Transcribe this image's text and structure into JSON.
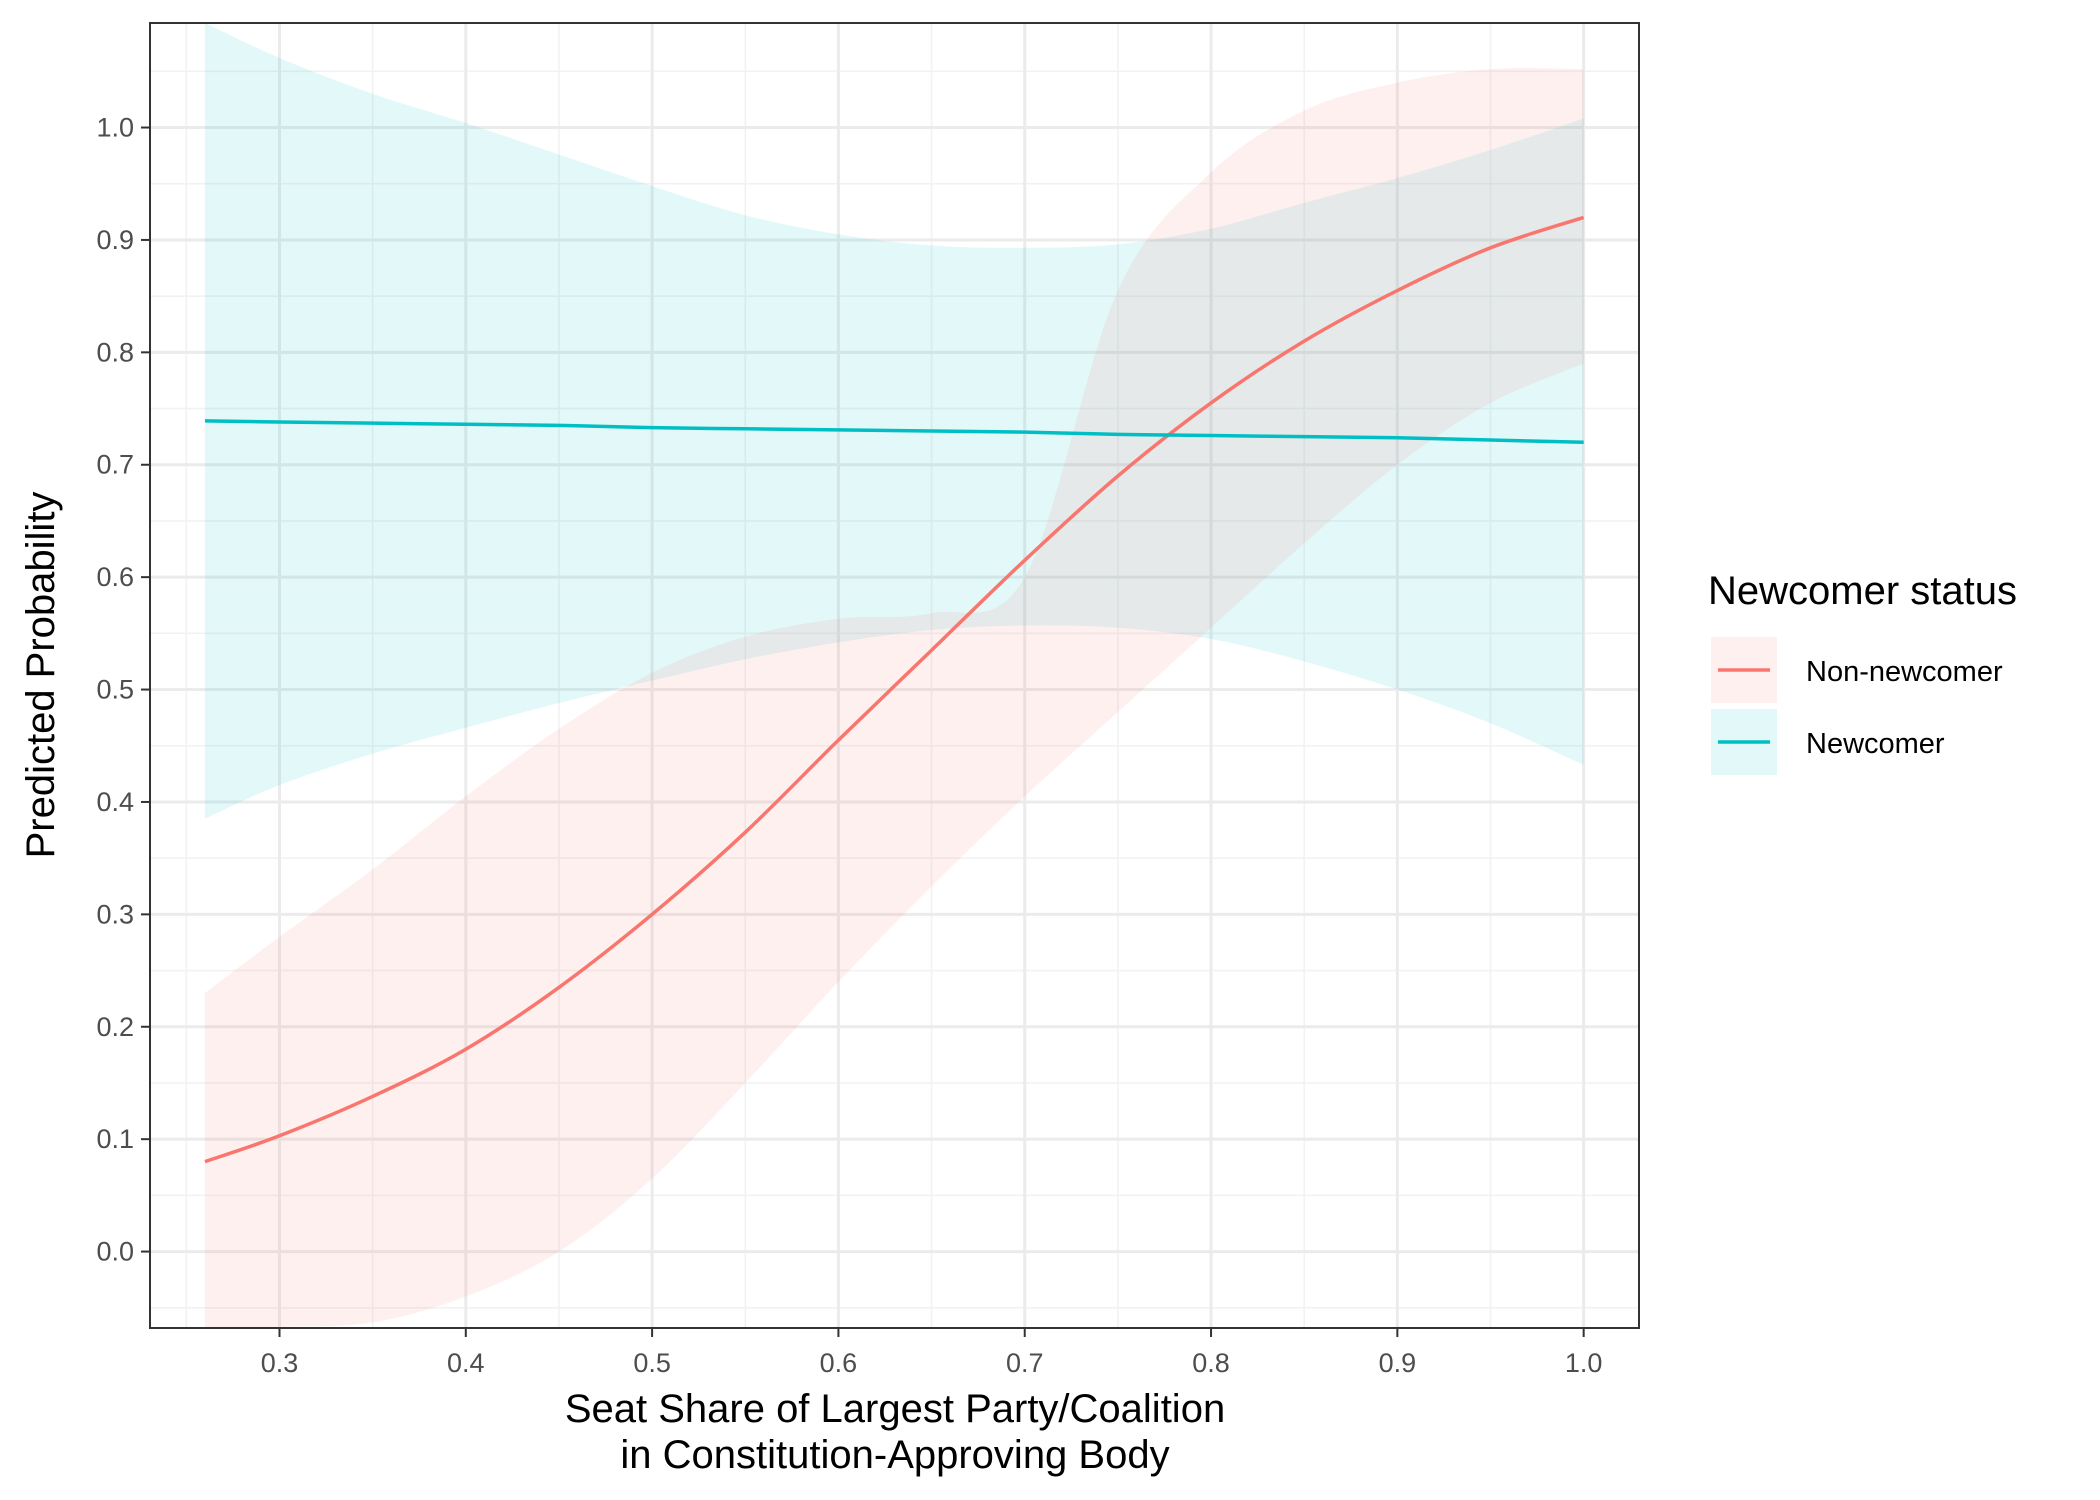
{
  "chart_data": {
    "type": "line",
    "title": "",
    "xlabel_lines": [
      "Seat Share of Largest Party/Coalition",
      "in Constitution-Approving Body"
    ],
    "ylabel": "Predicted Probability",
    "xlim": [
      0.2305,
      1.0297
    ],
    "ylim": [
      -0.068,
      1.093
    ],
    "x_ticks": [
      0.3,
      0.4,
      0.5,
      0.6,
      0.7,
      0.8,
      0.9,
      1.0
    ],
    "x_tick_labels": [
      "0.3",
      "0.4",
      "0.5",
      "0.6",
      "0.7",
      "0.8",
      "0.9",
      "1.0"
    ],
    "y_ticks": [
      0.0,
      0.1,
      0.2,
      0.3,
      0.4,
      0.5,
      0.6,
      0.7,
      0.8,
      0.9,
      1.0
    ],
    "y_tick_labels": [
      "0.0",
      "0.1",
      "0.2",
      "0.3",
      "0.4",
      "0.5",
      "0.6",
      "0.7",
      "0.8",
      "0.9",
      "1.0"
    ],
    "grid": true,
    "legend": {
      "title": "Newcomer status",
      "position": "right",
      "entries": [
        "Non-newcomer",
        "Newcomer"
      ]
    },
    "series": [
      {
        "name": "Non-newcomer",
        "color": "#F8766D",
        "fill": "#F8766D",
        "x": [
          0.26,
          0.3,
          0.35,
          0.4,
          0.45,
          0.5,
          0.55,
          0.6,
          0.65,
          0.7,
          0.75,
          0.8,
          0.85,
          0.9,
          0.95,
          1.0
        ],
        "y": [
          0.08,
          0.103,
          0.138,
          0.18,
          0.235,
          0.3,
          0.373,
          0.455,
          0.535,
          0.615,
          0.69,
          0.755,
          0.81,
          0.855,
          0.893,
          0.92
        ],
        "lower": [
          -0.068,
          -0.067,
          -0.063,
          -0.04,
          0.0,
          0.065,
          0.15,
          0.24,
          0.325,
          0.405,
          0.48,
          0.555,
          0.63,
          0.7,
          0.755,
          0.79
        ],
        "upper": [
          0.23,
          0.28,
          0.34,
          0.405,
          0.465,
          0.515,
          0.547,
          0.563,
          0.568,
          0.6,
          0.855,
          0.96,
          1.015,
          1.04,
          1.052,
          1.052
        ]
      },
      {
        "name": "Newcomer",
        "color": "#00BFC4",
        "fill": "#00BFC4",
        "x": [
          0.26,
          0.3,
          0.35,
          0.4,
          0.45,
          0.5,
          0.55,
          0.6,
          0.65,
          0.7,
          0.75,
          0.8,
          0.85,
          0.9,
          0.95,
          1.0
        ],
        "y": [
          0.739,
          0.738,
          0.737,
          0.736,
          0.735,
          0.733,
          0.732,
          0.731,
          0.73,
          0.729,
          0.727,
          0.726,
          0.725,
          0.724,
          0.722,
          0.72
        ],
        "lower": [
          0.385,
          0.415,
          0.443,
          0.466,
          0.488,
          0.508,
          0.527,
          0.542,
          0.553,
          0.557,
          0.555,
          0.545,
          0.525,
          0.5,
          0.47,
          0.433
        ],
        "upper": [
          1.093,
          1.062,
          1.03,
          1.004,
          0.976,
          0.948,
          0.922,
          0.905,
          0.895,
          0.893,
          0.896,
          0.91,
          0.933,
          0.955,
          0.98,
          1.008
        ]
      }
    ]
  }
}
